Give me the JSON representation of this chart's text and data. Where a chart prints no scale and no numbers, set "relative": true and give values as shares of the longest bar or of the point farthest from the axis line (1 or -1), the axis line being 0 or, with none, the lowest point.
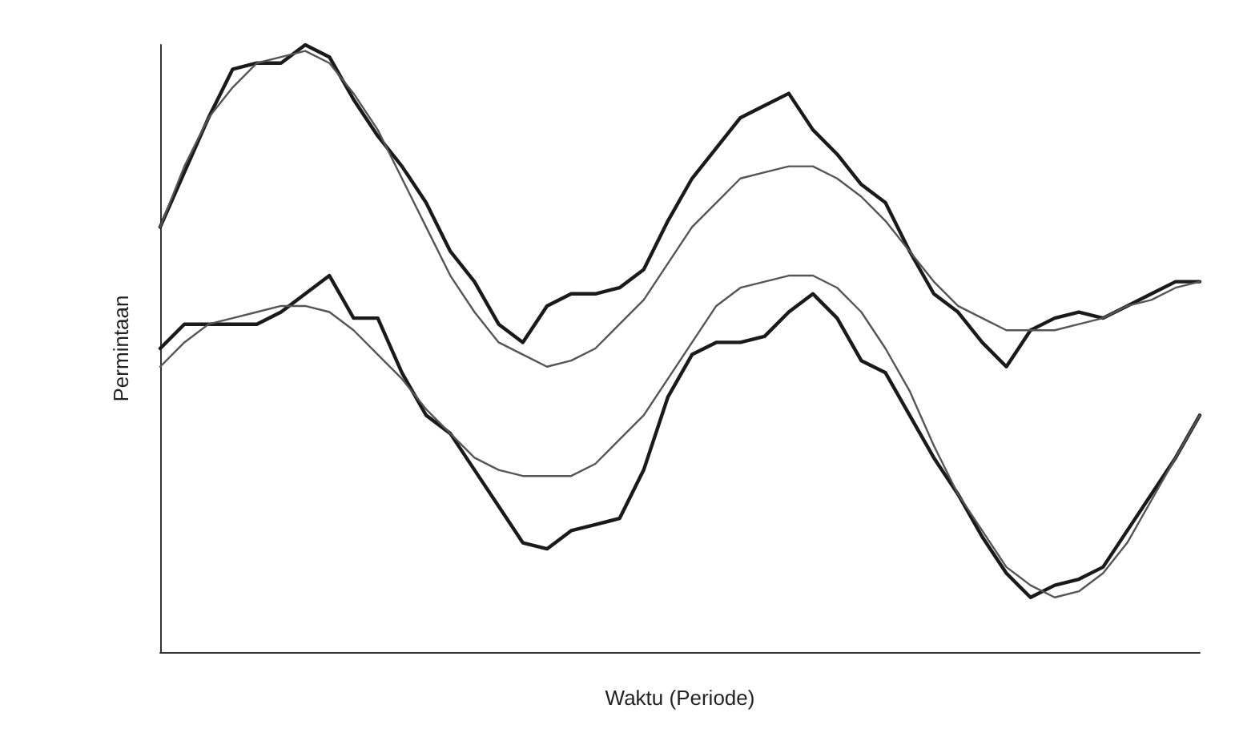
{
  "chart_data": {
    "type": "line",
    "relative": true,
    "xlabel": "Waktu (Periode)",
    "ylabel": "Permintaan",
    "grid": false,
    "marker": "none",
    "line_style": "solid",
    "categories": [
      null,
      null,
      null,
      null,
      null,
      null,
      null,
      null,
      null,
      null,
      null,
      null,
      null,
      null,
      null,
      null,
      null,
      null,
      null,
      null,
      null,
      null,
      null,
      null,
      null,
      null,
      null,
      null,
      null,
      null,
      null,
      null,
      null,
      null,
      null,
      null,
      null,
      null,
      null,
      null,
      null,
      null,
      null,
      null
    ],
    "series": [
      {
        "color": "#1a1a1a",
        "values": [
          0.7,
          0.79,
          0.88,
          0.96,
          0.97,
          0.97,
          1.0,
          0.98,
          0.91,
          0.85,
          0.8,
          0.74,
          0.66,
          0.61,
          0.54,
          0.51,
          0.57,
          0.59,
          0.59,
          0.6,
          0.63,
          0.71,
          0.78,
          0.83,
          0.88,
          0.9,
          0.92,
          0.86,
          0.82,
          0.77,
          0.74,
          0.66,
          0.59,
          0.56,
          0.51,
          0.47,
          0.53,
          0.55,
          0.56,
          0.55,
          0.57,
          0.59,
          0.61,
          0.61
        ]
      },
      {
        "color": "#555555",
        "values": [
          0.7,
          0.8,
          0.88,
          0.93,
          0.97,
          0.98,
          0.99,
          0.97,
          0.92,
          0.86,
          0.78,
          0.7,
          0.62,
          0.56,
          0.51,
          0.49,
          0.47,
          0.48,
          0.5,
          0.54,
          0.58,
          0.64,
          0.7,
          0.74,
          0.78,
          0.79,
          0.8,
          0.8,
          0.78,
          0.75,
          0.71,
          0.66,
          0.61,
          0.57,
          0.55,
          0.53,
          0.53,
          0.53,
          0.54,
          0.55,
          0.57,
          0.58,
          0.6,
          0.61
        ]
      },
      {
        "color": "#1a1a1a",
        "values": [
          0.5,
          0.54,
          0.54,
          0.54,
          0.54,
          0.56,
          0.59,
          0.62,
          0.55,
          0.55,
          0.46,
          0.39,
          0.36,
          0.3,
          0.24,
          0.18,
          0.17,
          0.2,
          0.21,
          0.22,
          0.3,
          0.42,
          0.49,
          0.51,
          0.51,
          0.52,
          0.56,
          0.59,
          0.55,
          0.48,
          0.46,
          0.39,
          0.32,
          0.26,
          0.19,
          0.13,
          0.09,
          0.11,
          0.12,
          0.14,
          0.2,
          0.26,
          0.32,
          0.39
        ]
      },
      {
        "color": "#555555",
        "values": [
          0.47,
          0.51,
          0.54,
          0.55,
          0.56,
          0.57,
          0.57,
          0.56,
          0.53,
          0.49,
          0.45,
          0.4,
          0.36,
          0.32,
          0.3,
          0.29,
          0.29,
          0.29,
          0.31,
          0.35,
          0.39,
          0.45,
          0.51,
          0.57,
          0.6,
          0.61,
          0.62,
          0.62,
          0.6,
          0.56,
          0.5,
          0.43,
          0.34,
          0.26,
          0.2,
          0.14,
          0.11,
          0.09,
          0.1,
          0.13,
          0.18,
          0.25,
          0.32,
          0.39
        ]
      }
    ]
  }
}
